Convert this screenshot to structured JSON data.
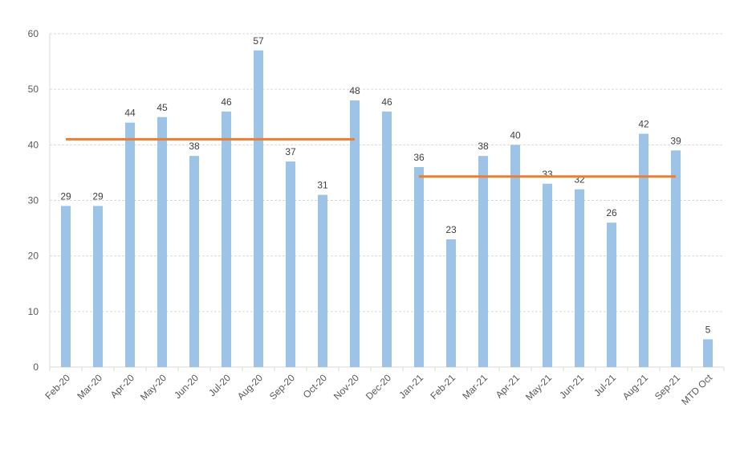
{
  "chart_data": {
    "type": "bar",
    "title": "",
    "xlabel": "",
    "ylabel": "",
    "ylim": [
      0,
      60
    ],
    "yticks": [
      0,
      10,
      20,
      30,
      40,
      50,
      60
    ],
    "grid": true,
    "categories": [
      "Feb-20",
      "Mar-20",
      "Apr-20",
      "May-20",
      "Jun-20",
      "Jul-20",
      "Aug-20",
      "Sep-20",
      "Oct-20",
      "Nov-20",
      "Dec-20",
      "Jan-21",
      "Feb-21",
      "Mar-21",
      "Apr-21",
      "May-21",
      "Jun-21",
      "Jul-21",
      "Aug-21",
      "Sep-21",
      "MTD Oct"
    ],
    "values": [
      29,
      29,
      44,
      45,
      38,
      46,
      57,
      37,
      31,
      48,
      46,
      36,
      23,
      38,
      40,
      33,
      32,
      26,
      42,
      39,
      5
    ],
    "average_lines": [
      {
        "from": "Feb-20",
        "to": "Nov-20",
        "value": 41
      },
      {
        "from": "Jan-21",
        "to": "Sep-21",
        "value": 34.3
      }
    ],
    "colors": {
      "bar": "#9dc3e6",
      "average": "#ed7d31",
      "grid": "#d9d9d9",
      "text": "#595959"
    }
  }
}
